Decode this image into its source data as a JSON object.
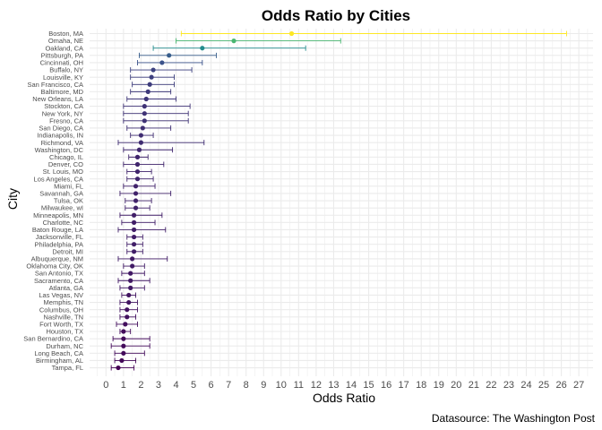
{
  "chart_data": {
    "type": "scatter",
    "title": "Odds Ratio by Cities",
    "xlabel": "Odds Ratio",
    "ylabel": "City",
    "caption": "Datasource: The Washington Post",
    "xlim": [
      0,
      27
    ],
    "x_ticks": [
      0,
      1,
      2,
      3,
      4,
      5,
      6,
      7,
      8,
      9,
      10,
      11,
      12,
      13,
      14,
      15,
      16,
      17,
      18,
      19,
      20,
      21,
      22,
      23,
      24,
      25,
      26,
      27
    ],
    "grid": true,
    "color_scale": [
      "#440154",
      "#3b528b",
      "#21908d",
      "#5dc963",
      "#fde725"
    ],
    "cities": [
      "Boston, MA",
      "Omaha, NE",
      "Oakland, CA",
      "Pittsburgh, PA",
      "Cincinnati, OH",
      "Buffalo, NY",
      "Louisville, KY",
      "San Francisco, CA",
      "Baltimore, MD",
      "New Orleans, LA",
      "Stockton, CA",
      "New York, NY",
      "Fresno, CA",
      "San Diego, CA",
      "Indianapolis, IN",
      "Richmond, VA",
      "Washington, DC",
      "Chicago, IL",
      "Denver, CO",
      "St. Louis, MO",
      "Los Angeles, CA",
      "Miami, FL",
      "Savannah, GA",
      "Tulsa, OK",
      "Milwaukee, wI",
      "Minneapolis, MN",
      "Charlotte, NC",
      "Baton Rouge, LA",
      "Jacksonville, FL",
      "Philadelphia, PA",
      "Detroit, MI",
      "Albuquerque, NM",
      "Oklahoma City, OK",
      "San Antonio, TX",
      "Sacramento, CA",
      "Atlanta, GA",
      "Las Vegas, NV",
      "Memphis, TN",
      "Columbus, OH",
      "Nashville, TN",
      "Fort Worth, TX",
      "Houston, TX",
      "San Bernardino, CA",
      "Durham, NC",
      "Long Beach, CA",
      "Birmingham, AL",
      "Tampa, FL"
    ],
    "odds_ratio": [
      10.6,
      7.3,
      5.5,
      3.6,
      3.2,
      2.7,
      2.6,
      2.5,
      2.4,
      2.3,
      2.2,
      2.2,
      2.2,
      2.1,
      2.0,
      2.0,
      1.9,
      1.8,
      1.8,
      1.8,
      1.8,
      1.7,
      1.7,
      1.7,
      1.7,
      1.6,
      1.6,
      1.6,
      1.6,
      1.6,
      1.6,
      1.5,
      1.5,
      1.4,
      1.4,
      1.4,
      1.3,
      1.3,
      1.2,
      1.2,
      1.1,
      1.0,
      1.0,
      1.0,
      1.0,
      0.9,
      0.7
    ],
    "ci_low": [
      4.3,
      4.0,
      2.7,
      1.9,
      1.8,
      1.4,
      1.4,
      1.5,
      1.4,
      1.2,
      1.0,
      1.0,
      1.0,
      1.2,
      1.4,
      0.7,
      1.0,
      1.3,
      1.0,
      1.2,
      1.2,
      1.0,
      0.8,
      1.1,
      1.1,
      0.8,
      0.9,
      0.7,
      1.2,
      1.2,
      1.2,
      0.7,
      1.0,
      0.9,
      0.7,
      0.8,
      0.9,
      0.8,
      0.8,
      0.8,
      0.6,
      0.8,
      0.4,
      0.3,
      0.5,
      0.5,
      0.3
    ],
    "ci_high": [
      26.3,
      13.4,
      11.4,
      6.3,
      5.5,
      4.9,
      3.9,
      3.9,
      3.7,
      4.0,
      4.8,
      4.7,
      4.7,
      3.7,
      2.7,
      5.6,
      3.8,
      2.4,
      3.3,
      2.6,
      2.7,
      2.8,
      3.7,
      2.6,
      2.5,
      3.2,
      2.8,
      3.4,
      2.1,
      2.1,
      2.1,
      3.5,
      2.2,
      2.2,
      2.5,
      2.2,
      1.7,
      1.8,
      1.8,
      1.7,
      1.8,
      1.4,
      2.5,
      2.5,
      2.2,
      1.7,
      1.6
    ]
  }
}
